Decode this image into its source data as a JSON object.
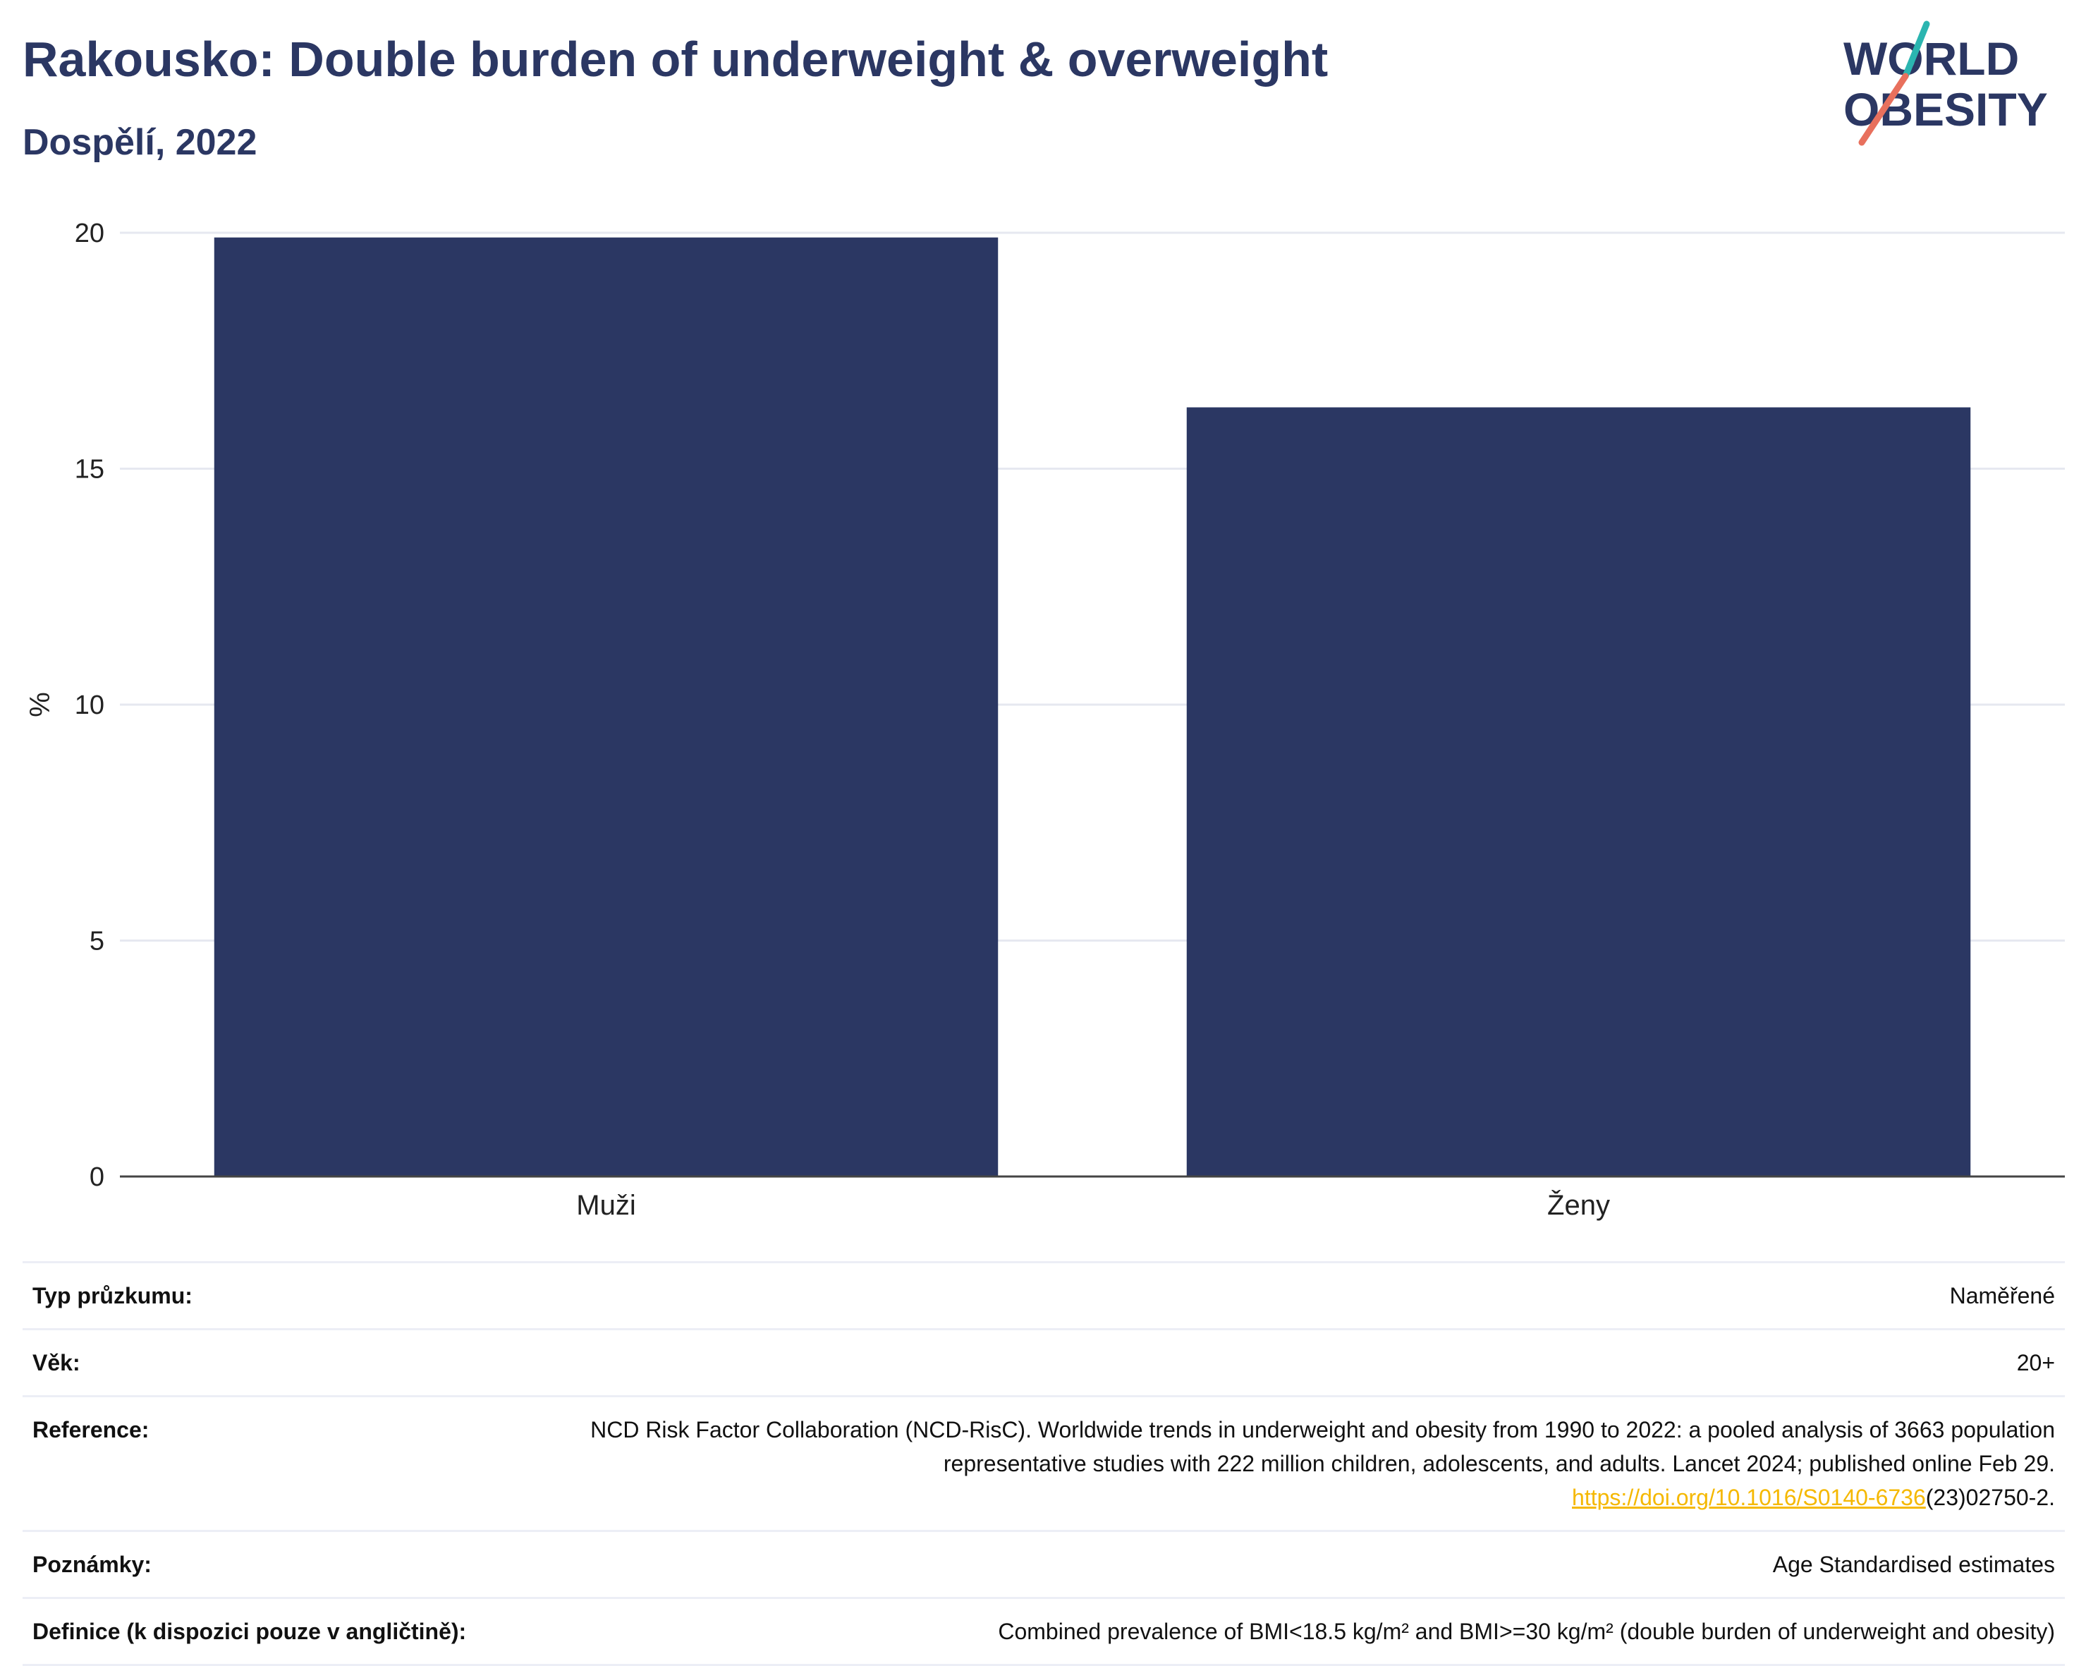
{
  "header": {
    "title": "Rakousko: Double burden of underweight & overweight",
    "subtitle": "Dospělí, 2022"
  },
  "logo": {
    "line1": "WORLD",
    "line2": "OBESITY",
    "colors": {
      "text": "#2b3763",
      "accent_teal": "#2bb5b0",
      "accent_coral": "#e8705d"
    }
  },
  "chart_data": {
    "type": "bar",
    "categories": [
      "Muži",
      "Ženy"
    ],
    "values": [
      19.9,
      16.3
    ],
    "ylabel": "%",
    "ylim": [
      0,
      20
    ],
    "yticks": [
      "0",
      "5",
      "10",
      "15",
      "20"
    ],
    "ytick_values": [
      0,
      5,
      10,
      15,
      20
    ],
    "grid": true,
    "bar_color": "#2b3763"
  },
  "info": {
    "rows": [
      {
        "label": "Typ průzkumu:",
        "value": "Naměřené"
      },
      {
        "label": "Věk:",
        "value": "20+"
      },
      {
        "label": "Reference:",
        "value": "NCD Risk Factor Collaboration (NCD-RisC). Worldwide trends in underweight and obesity from 1990 to 2022: a pooled analysis of 3663 population representative studies with 222 million children, adolescents, and adults. Lancet 2024; published online Feb 29.",
        "link": "https://doi.org/10.1016/S0140-6736",
        "link_suffix": "(23)02750-2."
      },
      {
        "label": "Poznámky:",
        "value": "Age Standardised estimates"
      },
      {
        "label": "Definice (k dispozici pouze v angličtině):",
        "value": "Combined prevalence of BMI<18.5 kg/m² and BMI>=30 kg/m² (double burden of underweight and obesity)"
      }
    ]
  }
}
